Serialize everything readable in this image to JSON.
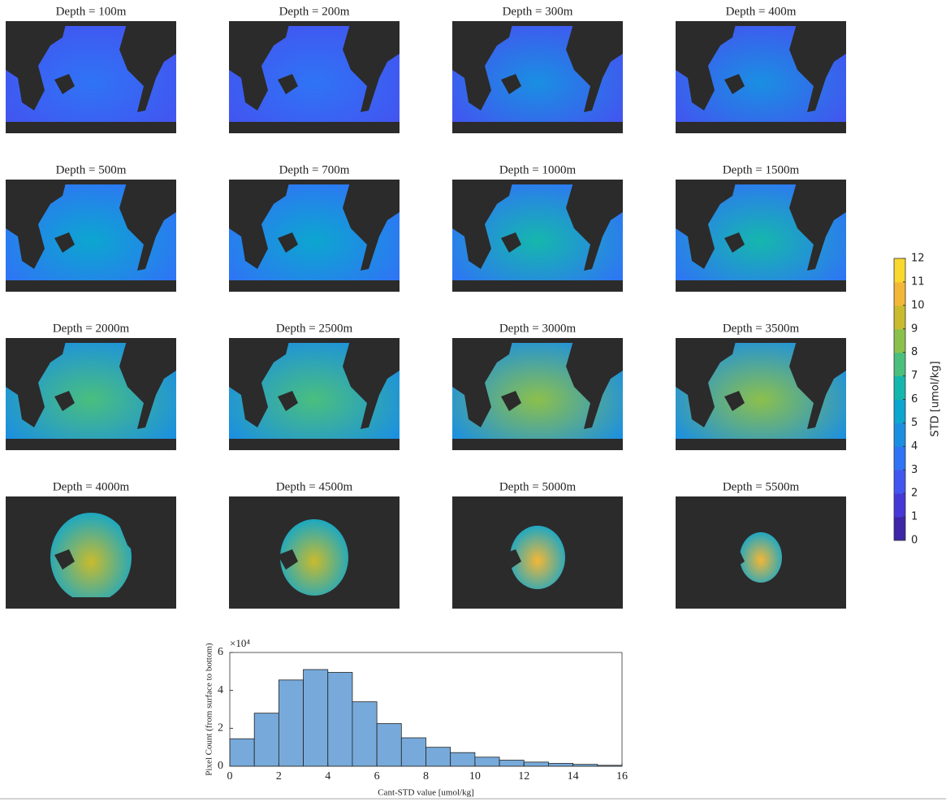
{
  "maps": {
    "titles": [
      "Depth = 100m",
      "Depth = 200m",
      "Depth = 300m",
      "Depth = 400m",
      "Depth = 500m",
      "Depth = 700m",
      "Depth = 1000m",
      "Depth = 1500m",
      "Depth = 2000m",
      "Depth = 2500m",
      "Depth = 3000m",
      "Depth = 3500m",
      "Depth = 4000m",
      "Depth = 4500m",
      "Depth = 5000m",
      "Depth = 5500m"
    ]
  },
  "colorbar": {
    "label": "STD [umol/kg]",
    "lim": [
      0,
      12
    ],
    "ticks": [
      0,
      1,
      2,
      3,
      4,
      5,
      6,
      7,
      8,
      9,
      10,
      11,
      12
    ],
    "colors": [
      "#3e26a8",
      "#4538d6",
      "#4255f0",
      "#2f74f6",
      "#1a8fe2",
      "#0ca6cf",
      "#15b7ad",
      "#4abf7e",
      "#8cc04c",
      "#c9bb2d",
      "#f3b737",
      "#f8d82c"
    ]
  },
  "chart_data": {
    "type": "histogram",
    "xlabel": "Cant-STD value [umol/kg]",
    "ylabel": "Pixel Count (from surface to bottom)",
    "y_multiplier": "×10⁴",
    "bins": [
      0,
      1,
      2,
      3,
      4,
      5,
      6,
      7,
      8,
      9,
      10,
      11,
      12,
      13,
      14,
      15,
      16
    ],
    "values": [
      1.45,
      2.8,
      4.55,
      5.1,
      4.95,
      3.4,
      2.25,
      1.5,
      1.0,
      0.72,
      0.48,
      0.32,
      0.22,
      0.15,
      0.1,
      0.05
    ],
    "color": "#77aadb",
    "xlim": [
      0,
      16
    ],
    "xticks": [
      0,
      2,
      4,
      6,
      8,
      10,
      12,
      14,
      16
    ],
    "ylim": [
      0,
      6
    ],
    "yticks": [
      0,
      2,
      4,
      6
    ]
  }
}
